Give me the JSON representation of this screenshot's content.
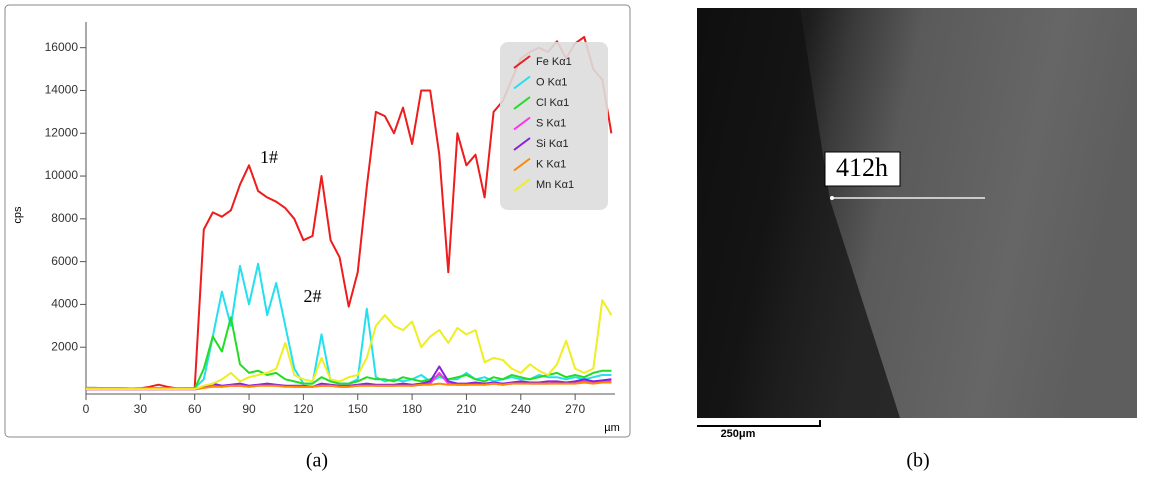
{
  "chart_data": {
    "type": "line",
    "ylabel": "cps",
    "xlabel": "µm",
    "xlim": [
      0,
      292
    ],
    "ylim": [
      0,
      17200
    ],
    "xticks": [
      0,
      30,
      60,
      90,
      120,
      150,
      180,
      210,
      240,
      270
    ],
    "yticks": [
      2000,
      4000,
      6000,
      8000,
      10000,
      12000,
      14000,
      16000
    ],
    "grid": false,
    "legend": "upper right",
    "annotations": [
      {
        "text": "1#",
        "x": 101,
        "y": 10800
      },
      {
        "text": "2#",
        "x": 125,
        "y": 4300
      }
    ],
    "x": [
      0,
      5,
      10,
      15,
      20,
      25,
      30,
      35,
      40,
      45,
      50,
      55,
      60,
      65,
      70,
      75,
      80,
      85,
      90,
      95,
      100,
      105,
      110,
      115,
      120,
      125,
      130,
      135,
      140,
      145,
      150,
      155,
      160,
      165,
      170,
      175,
      180,
      185,
      190,
      195,
      200,
      205,
      210,
      215,
      220,
      225,
      230,
      235,
      240,
      245,
      250,
      255,
      260,
      265,
      270,
      275,
      280,
      285,
      290
    ],
    "series": [
      {
        "name": "Fe Kα1",
        "color": "#ee1c1c",
        "values": [
          100,
          100,
          80,
          80,
          80,
          70,
          80,
          150,
          250,
          150,
          80,
          80,
          100,
          7500,
          8300,
          8100,
          8400,
          9600,
          10500,
          9300,
          9000,
          8800,
          8500,
          8000,
          7000,
          7200,
          10000,
          7000,
          6200,
          3900,
          5500,
          9500,
          13000,
          12800,
          12000,
          13200,
          11500,
          14000,
          14000,
          11000,
          5500,
          12000,
          10500,
          11000,
          9000,
          13000,
          13500,
          14500,
          15500,
          15800,
          16000,
          15800,
          16300,
          15500,
          16200,
          16500,
          15000,
          14500,
          12000
        ]
      },
      {
        "name": "O Kα1",
        "color": "#22e0f0",
        "values": [
          100,
          100,
          80,
          80,
          80,
          70,
          80,
          80,
          100,
          80,
          80,
          80,
          100,
          500,
          2500,
          4600,
          3000,
          5800,
          4000,
          5900,
          3500,
          5000,
          3000,
          1000,
          300,
          300,
          2600,
          400,
          300,
          300,
          500,
          3800,
          600,
          400,
          500,
          400,
          500,
          700,
          400,
          600,
          500,
          500,
          800,
          500,
          600,
          400,
          500,
          600,
          500,
          500,
          700,
          600,
          600,
          500,
          600,
          500,
          600,
          700,
          700
        ]
      },
      {
        "name": "Cl Kα1",
        "color": "#22dd22",
        "values": [
          50,
          50,
          50,
          50,
          50,
          50,
          50,
          50,
          60,
          50,
          50,
          50,
          50,
          1000,
          2500,
          1800,
          3400,
          1200,
          800,
          900,
          700,
          800,
          500,
          400,
          300,
          300,
          600,
          400,
          300,
          300,
          400,
          600,
          500,
          500,
          400,
          600,
          500,
          400,
          500,
          700,
          500,
          600,
          700,
          500,
          400,
          600,
          500,
          700,
          600,
          500,
          600,
          700,
          800,
          600,
          700,
          600,
          800,
          900,
          900
        ]
      },
      {
        "name": "S Kα1",
        "color": "#ff33ee",
        "values": [
          30,
          30,
          30,
          30,
          30,
          30,
          30,
          30,
          30,
          30,
          30,
          30,
          30,
          100,
          200,
          150,
          200,
          200,
          150,
          200,
          250,
          200,
          200,
          150,
          150,
          150,
          200,
          200,
          150,
          150,
          200,
          250,
          200,
          200,
          200,
          250,
          200,
          250,
          300,
          800,
          300,
          250,
          250,
          300,
          250,
          300,
          250,
          300,
          350,
          300,
          300,
          300,
          350,
          300,
          350,
          400,
          350,
          400,
          400
        ]
      },
      {
        "name": "Si Kα1",
        "color": "#8822dd",
        "values": [
          40,
          40,
          40,
          40,
          40,
          40,
          40,
          40,
          40,
          40,
          40,
          40,
          40,
          150,
          300,
          200,
          250,
          300,
          200,
          250,
          300,
          250,
          200,
          200,
          200,
          150,
          300,
          250,
          200,
          200,
          250,
          300,
          250,
          250,
          250,
          300,
          250,
          300,
          400,
          1100,
          400,
          300,
          300,
          350,
          300,
          350,
          300,
          350,
          400,
          350,
          350,
          400,
          400,
          350,
          400,
          500,
          400,
          450,
          500
        ]
      },
      {
        "name": "K Kα1",
        "color": "#ff8800",
        "values": [
          50,
          50,
          50,
          50,
          50,
          50,
          50,
          50,
          50,
          50,
          50,
          50,
          50,
          100,
          150,
          150,
          200,
          200,
          150,
          200,
          200,
          200,
          150,
          150,
          150,
          150,
          200,
          200,
          150,
          150,
          200,
          200,
          200,
          200,
          200,
          200,
          200,
          250,
          250,
          300,
          250,
          250,
          250,
          250,
          250,
          300,
          250,
          300,
          300,
          300,
          300,
          300,
          300,
          300,
          300,
          350,
          300,
          350,
          350
        ]
      },
      {
        "name": "Mn Kα1",
        "color": "#eeee22",
        "values": [
          40,
          40,
          40,
          40,
          40,
          40,
          40,
          40,
          40,
          40,
          40,
          40,
          40,
          200,
          300,
          500,
          800,
          400,
          600,
          700,
          800,
          1000,
          2200,
          700,
          500,
          400,
          1500,
          500,
          400,
          600,
          700,
          1500,
          3000,
          3500,
          3000,
          2800,
          3200,
          2000,
          2500,
          2800,
          2200,
          2900,
          2600,
          2800,
          1300,
          1500,
          1400,
          1000,
          800,
          1200,
          900,
          700,
          1200,
          2300,
          1000,
          800,
          1000,
          4200,
          3500
        ]
      }
    ]
  },
  "panel_labels": [
    "(a)",
    "(b)"
  ],
  "image": {
    "label": "412h",
    "scale_bar": "250μm"
  }
}
